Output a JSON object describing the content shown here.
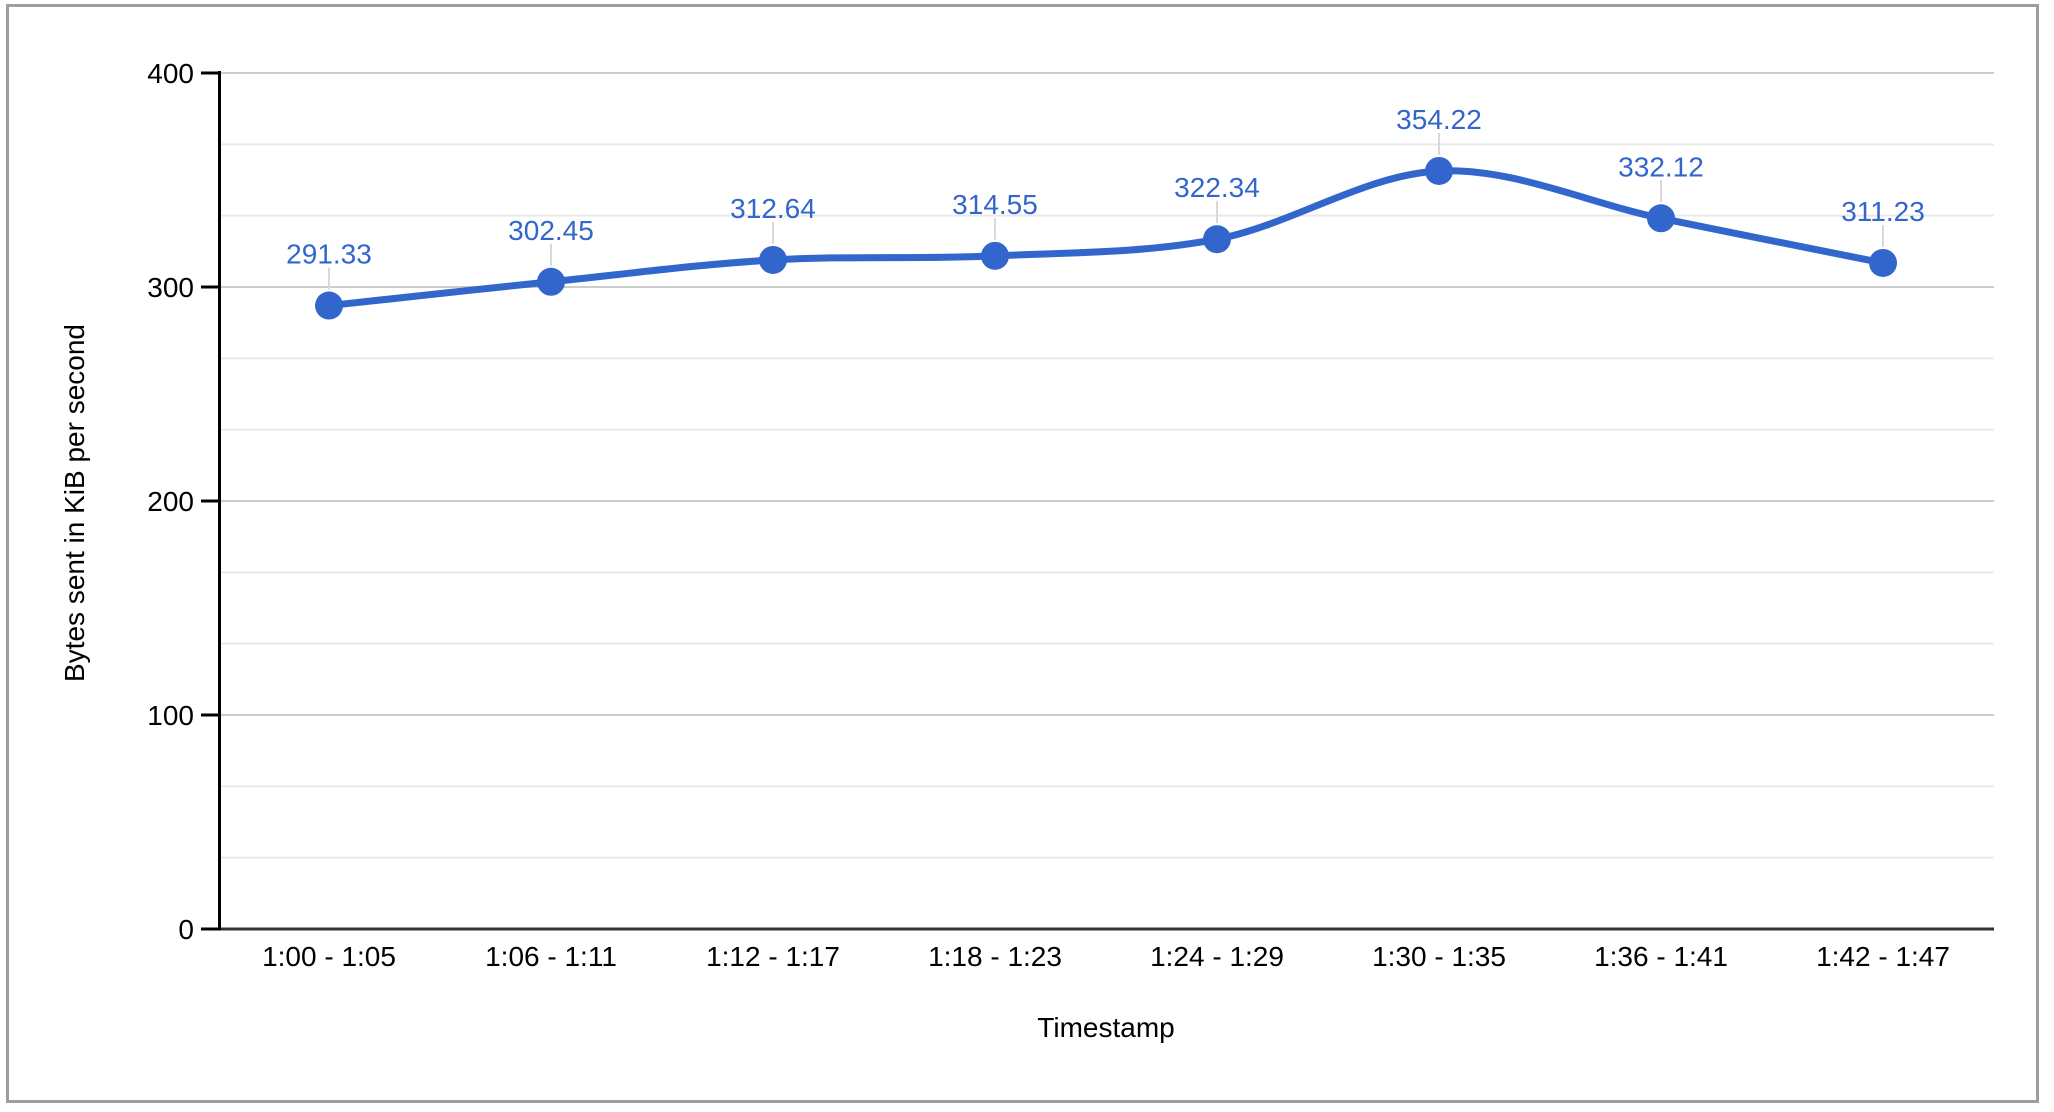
{
  "frame": {
    "border_color": "#9e9e9e",
    "background_color": "#ffffff"
  },
  "chart_data": {
    "type": "line",
    "title": "",
    "xlabel": "Timestamp",
    "ylabel": "Bytes sent in KiB per second",
    "categories": [
      "1:00 - 1:05",
      "1:06 - 1:11",
      "1:12 - 1:17",
      "1:18 - 1:23",
      "1:24 - 1:29",
      "1:30 - 1:35",
      "1:36 - 1:41",
      "1:42 - 1:47"
    ],
    "values": [
      291.33,
      302.45,
      312.64,
      314.55,
      322.34,
      354.22,
      332.12,
      311.23
    ],
    "point_labels": [
      "291.33",
      "302.45",
      "312.64",
      "314.55",
      "322.34",
      "354.22",
      "332.12",
      "311.23"
    ],
    "ylim": [
      0,
      400
    ],
    "y_ticks": [
      0,
      100,
      200,
      300,
      400
    ],
    "minor_gridlines_between_majors": 2,
    "grid": "horizontal-only",
    "legend": "none",
    "curve": "smooth",
    "colors": {
      "line": "#3366cc",
      "marker": "#3366cc",
      "data_label": "#3366cc",
      "axis_text": "#000000",
      "axis_line": "#000000",
      "baseline": "#333333",
      "major_grid": "#cccccc",
      "minor_grid": "#e9e9e9",
      "label_stem": "#d9d9d9"
    }
  }
}
